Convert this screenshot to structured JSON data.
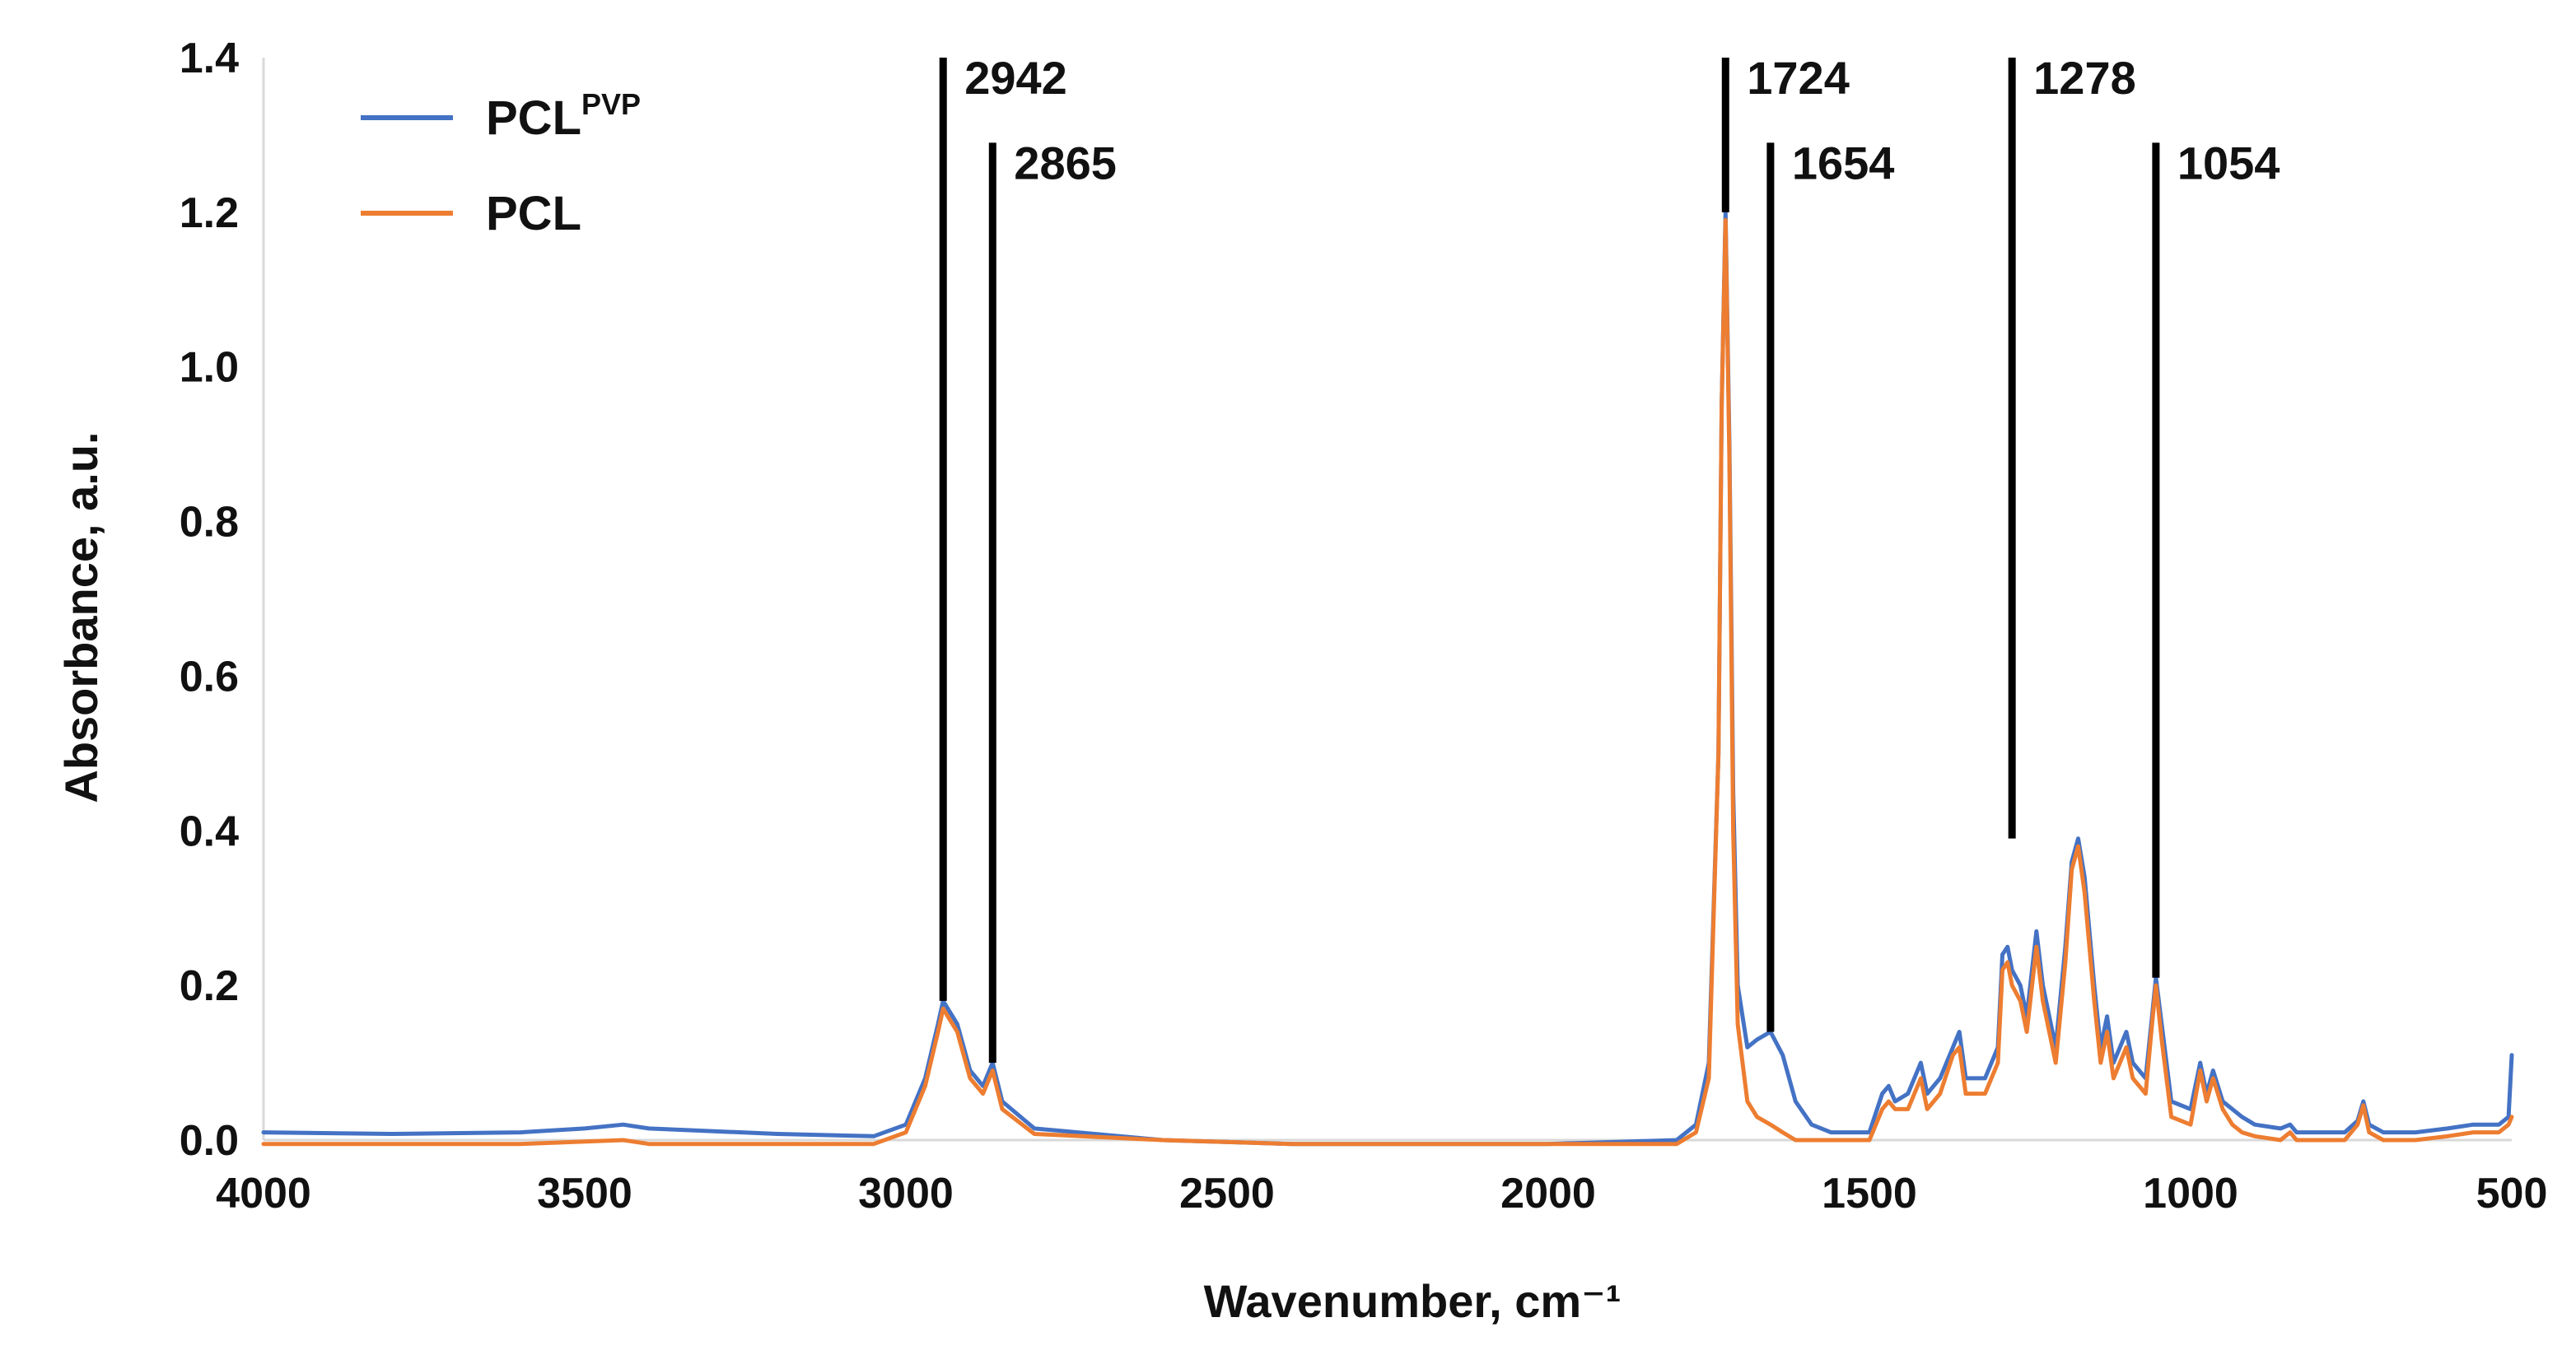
{
  "chart_data": {
    "type": "line",
    "xlabel": "Wavenumber, cm⁻¹",
    "ylabel": "Absorbance, a.u.",
    "xlim": [
      4000,
      500
    ],
    "ylim": [
      0,
      1.4
    ],
    "x_reversed": true,
    "x_ticks": [
      "4000",
      "3500",
      "3000",
      "2500",
      "2000",
      "1500",
      "1000",
      "500"
    ],
    "y_ticks": [
      "0.0",
      "0.2",
      "0.4",
      "0.6",
      "0.8",
      "1.0",
      "1.2",
      "1.4"
    ],
    "grid": false,
    "legend_position": "top-left",
    "series": [
      {
        "name": "PCL",
        "name_sup": "PVP",
        "color": "#4472C4",
        "points": [
          [
            4000,
            0.01
          ],
          [
            3800,
            0.008
          ],
          [
            3600,
            0.01
          ],
          [
            3500,
            0.015
          ],
          [
            3440,
            0.02
          ],
          [
            3400,
            0.015
          ],
          [
            3200,
            0.008
          ],
          [
            3050,
            0.005
          ],
          [
            3000,
            0.02
          ],
          [
            2970,
            0.08
          ],
          [
            2950,
            0.15
          ],
          [
            2942,
            0.18
          ],
          [
            2920,
            0.15
          ],
          [
            2900,
            0.09
          ],
          [
            2880,
            0.07
          ],
          [
            2865,
            0.1
          ],
          [
            2850,
            0.05
          ],
          [
            2800,
            0.015
          ],
          [
            2600,
            0.0
          ],
          [
            2400,
            -0.005
          ],
          [
            2200,
            -0.005
          ],
          [
            2000,
            -0.005
          ],
          [
            1800,
            0.0
          ],
          [
            1770,
            0.02
          ],
          [
            1750,
            0.1
          ],
          [
            1735,
            0.5
          ],
          [
            1730,
            0.95
          ],
          [
            1724,
            1.2
          ],
          [
            1718,
            0.9
          ],
          [
            1712,
            0.45
          ],
          [
            1705,
            0.2
          ],
          [
            1690,
            0.12
          ],
          [
            1675,
            0.13
          ],
          [
            1654,
            0.14
          ],
          [
            1635,
            0.11
          ],
          [
            1615,
            0.05
          ],
          [
            1590,
            0.02
          ],
          [
            1560,
            0.01
          ],
          [
            1500,
            0.01
          ],
          [
            1480,
            0.06
          ],
          [
            1470,
            0.07
          ],
          [
            1460,
            0.05
          ],
          [
            1440,
            0.06
          ],
          [
            1420,
            0.1
          ],
          [
            1410,
            0.06
          ],
          [
            1390,
            0.08
          ],
          [
            1370,
            0.12
          ],
          [
            1360,
            0.14
          ],
          [
            1350,
            0.08
          ],
          [
            1320,
            0.08
          ],
          [
            1300,
            0.12
          ],
          [
            1293,
            0.24
          ],
          [
            1285,
            0.25
          ],
          [
            1278,
            0.22
          ],
          [
            1265,
            0.2
          ],
          [
            1255,
            0.16
          ],
          [
            1240,
            0.27
          ],
          [
            1230,
            0.2
          ],
          [
            1220,
            0.16
          ],
          [
            1210,
            0.12
          ],
          [
            1195,
            0.25
          ],
          [
            1185,
            0.36
          ],
          [
            1175,
            0.39
          ],
          [
            1165,
            0.34
          ],
          [
            1150,
            0.2
          ],
          [
            1140,
            0.12
          ],
          [
            1130,
            0.16
          ],
          [
            1120,
            0.1
          ],
          [
            1100,
            0.14
          ],
          [
            1090,
            0.1
          ],
          [
            1070,
            0.08
          ],
          [
            1060,
            0.16
          ],
          [
            1054,
            0.21
          ],
          [
            1045,
            0.15
          ],
          [
            1030,
            0.05
          ],
          [
            1000,
            0.04
          ],
          [
            985,
            0.1
          ],
          [
            975,
            0.06
          ],
          [
            965,
            0.09
          ],
          [
            950,
            0.05
          ],
          [
            935,
            0.04
          ],
          [
            920,
            0.03
          ],
          [
            900,
            0.02
          ],
          [
            860,
            0.015
          ],
          [
            845,
            0.02
          ],
          [
            835,
            0.01
          ],
          [
            760,
            0.01
          ],
          [
            740,
            0.025
          ],
          [
            731,
            0.05
          ],
          [
            722,
            0.02
          ],
          [
            700,
            0.01
          ],
          [
            650,
            0.01
          ],
          [
            600,
            0.015
          ],
          [
            560,
            0.02
          ],
          [
            520,
            0.02
          ],
          [
            505,
            0.03
          ],
          [
            500,
            0.11
          ]
        ]
      },
      {
        "name": "PCL",
        "color": "#ED7D31",
        "points": [
          [
            4000,
            -0.005
          ],
          [
            3800,
            -0.005
          ],
          [
            3600,
            -0.005
          ],
          [
            3440,
            0.0
          ],
          [
            3400,
            -0.005
          ],
          [
            3200,
            -0.005
          ],
          [
            3050,
            -0.005
          ],
          [
            3000,
            0.01
          ],
          [
            2970,
            0.07
          ],
          [
            2950,
            0.14
          ],
          [
            2942,
            0.17
          ],
          [
            2920,
            0.14
          ],
          [
            2900,
            0.08
          ],
          [
            2880,
            0.06
          ],
          [
            2865,
            0.09
          ],
          [
            2850,
            0.04
          ],
          [
            2800,
            0.008
          ],
          [
            2600,
            0.0
          ],
          [
            2400,
            -0.005
          ],
          [
            2200,
            -0.005
          ],
          [
            2000,
            -0.005
          ],
          [
            1800,
            -0.005
          ],
          [
            1770,
            0.01
          ],
          [
            1750,
            0.08
          ],
          [
            1735,
            0.5
          ],
          [
            1730,
            0.95
          ],
          [
            1724,
            1.19
          ],
          [
            1718,
            0.88
          ],
          [
            1712,
            0.4
          ],
          [
            1705,
            0.15
          ],
          [
            1690,
            0.05
          ],
          [
            1675,
            0.03
          ],
          [
            1654,
            0.02
          ],
          [
            1635,
            0.01
          ],
          [
            1615,
            0.0
          ],
          [
            1590,
            0.0
          ],
          [
            1560,
            0.0
          ],
          [
            1500,
            0.0
          ],
          [
            1480,
            0.04
          ],
          [
            1470,
            0.05
          ],
          [
            1460,
            0.04
          ],
          [
            1440,
            0.04
          ],
          [
            1420,
            0.08
          ],
          [
            1410,
            0.04
          ],
          [
            1390,
            0.06
          ],
          [
            1370,
            0.11
          ],
          [
            1360,
            0.12
          ],
          [
            1350,
            0.06
          ],
          [
            1320,
            0.06
          ],
          [
            1300,
            0.1
          ],
          [
            1293,
            0.22
          ],
          [
            1285,
            0.23
          ],
          [
            1278,
            0.2
          ],
          [
            1265,
            0.18
          ],
          [
            1255,
            0.14
          ],
          [
            1240,
            0.25
          ],
          [
            1230,
            0.18
          ],
          [
            1220,
            0.14
          ],
          [
            1210,
            0.1
          ],
          [
            1195,
            0.23
          ],
          [
            1185,
            0.35
          ],
          [
            1175,
            0.38
          ],
          [
            1165,
            0.32
          ],
          [
            1150,
            0.18
          ],
          [
            1140,
            0.1
          ],
          [
            1130,
            0.14
          ],
          [
            1120,
            0.08
          ],
          [
            1100,
            0.12
          ],
          [
            1090,
            0.08
          ],
          [
            1070,
            0.06
          ],
          [
            1060,
            0.15
          ],
          [
            1054,
            0.2
          ],
          [
            1045,
            0.13
          ],
          [
            1030,
            0.03
          ],
          [
            1000,
            0.02
          ],
          [
            985,
            0.09
          ],
          [
            975,
            0.05
          ],
          [
            965,
            0.08
          ],
          [
            950,
            0.04
          ],
          [
            935,
            0.02
          ],
          [
            920,
            0.01
          ],
          [
            900,
            0.005
          ],
          [
            860,
            0.0
          ],
          [
            845,
            0.01
          ],
          [
            835,
            0.0
          ],
          [
            760,
            0.0
          ],
          [
            740,
            0.02
          ],
          [
            731,
            0.045
          ],
          [
            722,
            0.01
          ],
          [
            700,
            0.0
          ],
          [
            650,
            0.0
          ],
          [
            600,
            0.005
          ],
          [
            560,
            0.01
          ],
          [
            520,
            0.01
          ],
          [
            505,
            0.02
          ],
          [
            500,
            0.03
          ]
        ]
      }
    ],
    "annotations": [
      {
        "label": "2942",
        "x": 2942,
        "y_bottom": 0.18,
        "y_top": 1.4
      },
      {
        "label": "2865",
        "x": 2865,
        "y_bottom": 0.1,
        "y_top": 1.29
      },
      {
        "label": "1724",
        "x": 1724,
        "y_bottom": 1.2,
        "y_top": 1.4
      },
      {
        "label": "1654",
        "x": 1654,
        "y_bottom": 0.14,
        "y_top": 1.29
      },
      {
        "label": "1278",
        "x": 1278,
        "y_bottom": 0.39,
        "y_top": 1.4
      },
      {
        "label": "1054",
        "x": 1054,
        "y_bottom": 0.21,
        "y_top": 1.29
      }
    ]
  }
}
